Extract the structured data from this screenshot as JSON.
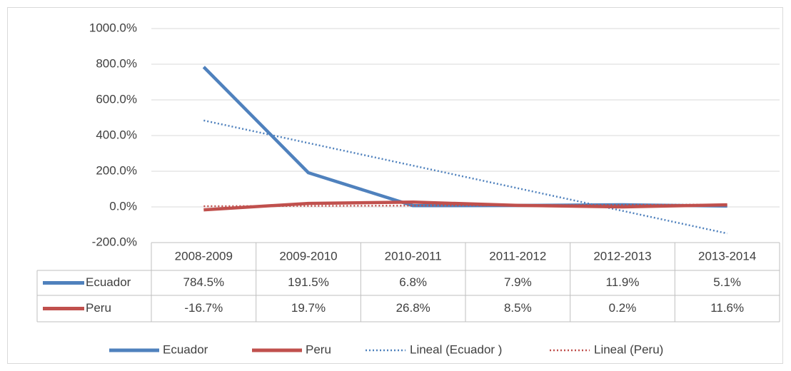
{
  "chart_data": {
    "type": "line",
    "categories": [
      "2008-2009",
      "2009-2010",
      "2010-2011",
      "2011-2012",
      "2012-2013",
      "2013-2014"
    ],
    "series": [
      {
        "name": "Ecuador",
        "color": "#4f81bd",
        "values": [
          784.5,
          191.5,
          6.8,
          7.9,
          11.9,
          5.1
        ],
        "value_labels": [
          "784.5%",
          "191.5%",
          "6.8%",
          "7.9%",
          "11.9%",
          "5.1%"
        ],
        "trendline": {
          "name": "Lineal (Ecuador )",
          "color": "#4f81bd"
        }
      },
      {
        "name": "Peru",
        "color": "#c0504d",
        "values": [
          -16.7,
          19.7,
          26.8,
          8.5,
          0.2,
          11.6
        ],
        "value_labels": [
          "-16.7%",
          "19.7%",
          "26.8%",
          "8.5%",
          "0.2%",
          "11.6%"
        ],
        "trendline": {
          "name": "Lineal (Peru)",
          "color": "#c0504d"
        }
      }
    ],
    "ylim": [
      -200,
      1000
    ],
    "yticks": [
      {
        "value": -200,
        "label": "-200.0%"
      },
      {
        "value": 0,
        "label": "0.0%"
      },
      {
        "value": 200,
        "label": "200.0%"
      },
      {
        "value": 400,
        "label": "400.0%"
      },
      {
        "value": 600,
        "label": "600.0%"
      },
      {
        "value": 800,
        "label": "800.0%"
      },
      {
        "value": 1000,
        "label": "1000.0%"
      }
    ],
    "grid": true,
    "legend": "bottom"
  }
}
